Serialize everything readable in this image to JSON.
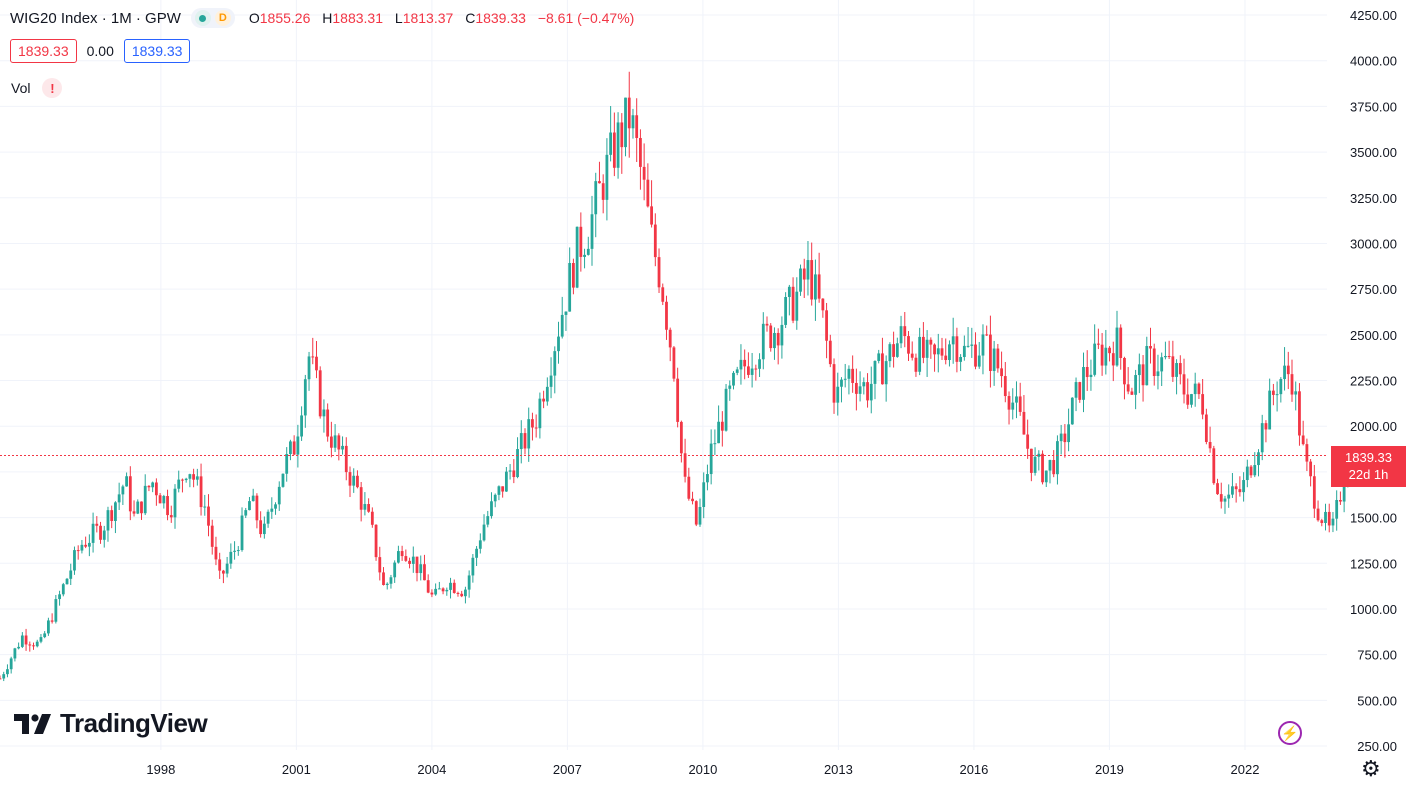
{
  "header": {
    "symbol_line": "WIG20 Index · 1M · GPW",
    "delay_badge": "D",
    "open_label": "O",
    "open_value": "1855.26",
    "high_label": "H",
    "high_value": "1883.31",
    "low_label": "L",
    "low_value": "1813.37",
    "close_label": "C",
    "close_value": "1839.33",
    "change": "−8.61 (−0.47%)"
  },
  "quote": {
    "bid": "1839.33",
    "spread": "0.00",
    "ask": "1839.33"
  },
  "indicator": {
    "label": "Vol",
    "warning": "!"
  },
  "brand": {
    "name": "TradingView"
  },
  "price_tag": {
    "price": "1839.33",
    "countdown": "22d 1h"
  },
  "icons": {
    "replay": "lightning-icon",
    "settings": "gear-icon"
  },
  "colors": {
    "up": "#26a69a",
    "down": "#f23645",
    "price_line": "#f23645",
    "grid": "#f0f3fa"
  },
  "chart_data": {
    "type": "candlestick",
    "interval": "1M",
    "x_tick_labels": [
      "1998",
      "2001",
      "2004",
      "2007",
      "2010",
      "2013",
      "2016",
      "2019",
      "2022"
    ],
    "y_tick_labels": [
      "250.00",
      "500.00",
      "750.00",
      "1000.00",
      "1250.00",
      "1500.00",
      "1750.00",
      "2000.00",
      "2250.00",
      "2500.00",
      "2750.00",
      "3000.00",
      "3250.00",
      "3500.00",
      "3750.00",
      "4000.00",
      "4250.00"
    ],
    "ylim": [
      250,
      4250
    ],
    "xlim": [
      1995.0,
      2024.7
    ],
    "last_price": 1839.33,
    "grid": true,
    "anchors": [
      [
        1995.0,
        620
      ],
      [
        1995.5,
        850
      ],
      [
        1995.9,
        800
      ],
      [
        1996.3,
        1050
      ],
      [
        1996.8,
        1350
      ],
      [
        1997.3,
        1450
      ],
      [
        1997.8,
        1700
      ],
      [
        1998.0,
        1500
      ],
      [
        1998.4,
        1700
      ],
      [
        1998.8,
        1550
      ],
      [
        1999.2,
        1800
      ],
      [
        1999.6,
        1550
      ],
      [
        1999.9,
        1150
      ],
      [
        2000.3,
        1350
      ],
      [
        2000.6,
        1600
      ],
      [
        2000.9,
        1400
      ],
      [
        2001.3,
        1750
      ],
      [
        2001.6,
        1900
      ],
      [
        2001.9,
        2400
      ],
      [
        2002.3,
        2000
      ],
      [
        2002.7,
        1800
      ],
      [
        2003.0,
        1650
      ],
      [
        2003.3,
        1450
      ],
      [
        2003.6,
        1100
      ],
      [
        2004.0,
        1350
      ],
      [
        2004.3,
        1250
      ],
      [
        2004.7,
        1050
      ],
      [
        2005.0,
        1150
      ],
      [
        2005.4,
        1100
      ],
      [
        2005.8,
        1450
      ],
      [
        2006.2,
        1650
      ],
      [
        2006.6,
        1850
      ],
      [
        2007.0,
        2050
      ],
      [
        2007.3,
        2350
      ],
      [
        2007.6,
        2650
      ],
      [
        2007.9,
        2950
      ],
      [
        2008.2,
        3100
      ],
      [
        2008.5,
        3350
      ],
      [
        2008.8,
        3550
      ],
      [
        2009.1,
        3700
      ],
      [
        2009.3,
        3450
      ],
      [
        2009.6,
        3000
      ],
      [
        2009.8,
        2800
      ],
      [
        2010.1,
        2300
      ],
      [
        2010.3,
        1700
      ],
      [
        2010.6,
        1450
      ],
      [
        2010.9,
        1850
      ],
      [
        2011.3,
        2150
      ],
      [
        2011.7,
        2350
      ],
      [
        2012.0,
        2450
      ],
      [
        2012.4,
        2550
      ],
      [
        2012.8,
        2700
      ],
      [
        2013.1,
        2850
      ],
      [
        2013.4,
        2600
      ],
      [
        2013.7,
        2150
      ],
      [
        2014.0,
        2300
      ],
      [
        2014.4,
        2200
      ],
      [
        2014.8,
        2350
      ],
      [
        2015.2,
        2500
      ],
      [
        2015.5,
        2400
      ],
      [
        2015.9,
        2350
      ],
      [
        2016.3,
        2500
      ],
      [
        2016.6,
        2400
      ],
      [
        2017.0,
        2450
      ],
      [
        2017.4,
        2300
      ],
      [
        2017.8,
        2050
      ],
      [
        2018.1,
        1800
      ],
      [
        2018.4,
        1750
      ],
      [
        2018.7,
        1850
      ],
      [
        2019.2,
        2250
      ],
      [
        2019.6,
        2400
      ],
      [
        2020.0,
        2450
      ],
      [
        2020.3,
        2200
      ],
      [
        2020.7,
        2350
      ],
      [
        2021.1,
        2350
      ],
      [
        2021.5,
        2200
      ],
      [
        2021.9,
        2150
      ],
      [
        2022.2,
        1700
      ],
      [
        2022.4,
        1600
      ],
      [
        2022.8,
        1650
      ],
      [
        2023.2,
        1950
      ],
      [
        2023.6,
        2250
      ],
      [
        2023.9,
        2300
      ],
      [
        2024.2,
        1800
      ],
      [
        2024.5,
        1550
      ],
      [
        2024.8,
        1400
      ],
      [
        2025.1,
        1750
      ],
      [
        2025.4,
        1839
      ]
    ]
  }
}
